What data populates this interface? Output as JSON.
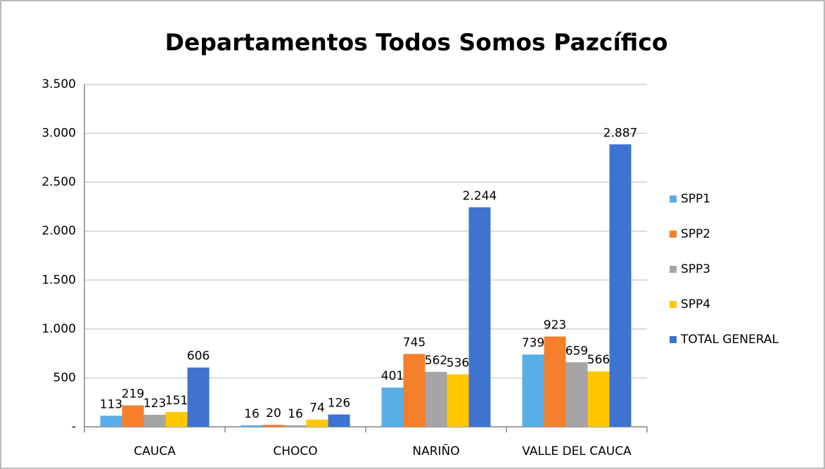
{
  "chart_data": {
    "type": "bar",
    "title": "Departamentos Todos Somos Pazcífico",
    "categories": [
      "CAUCA",
      "CHOCO",
      "NARIÑO",
      "VALLE DEL CAUCA"
    ],
    "series": [
      {
        "name": "SPP1",
        "color": "#5aaee6",
        "values": [
          113,
          16,
          401,
          739
        ]
      },
      {
        "name": "SPP2",
        "color": "#f57f2a",
        "values": [
          219,
          20,
          745,
          923
        ]
      },
      {
        "name": "SPP3",
        "color": "#a5a5a5",
        "values": [
          123,
          16,
          562,
          659
        ]
      },
      {
        "name": "SPP4",
        "color": "#ffc800",
        "values": [
          151,
          74,
          536,
          566
        ]
      },
      {
        "name": "TOTAL GENERAL",
        "color": "#3e73d0",
        "values": [
          606,
          126,
          2244,
          2887
        ],
        "value_labels": [
          "606",
          "126",
          "2.244",
          "2.887"
        ]
      }
    ],
    "ylim": [
      0,
      3500
    ],
    "yticks": [
      {
        "value": 0,
        "label": "-"
      },
      500,
      {
        "value": 1000,
        "label": "1.000"
      },
      {
        "value": 1500,
        "label": "1.500"
      },
      {
        "value": 2000,
        "label": "2.000"
      },
      {
        "value": 2500,
        "label": "2.500"
      },
      {
        "value": 3000,
        "label": "3.000"
      },
      {
        "value": 3500,
        "label": "3.500"
      }
    ],
    "grid": true,
    "legend": "right"
  }
}
